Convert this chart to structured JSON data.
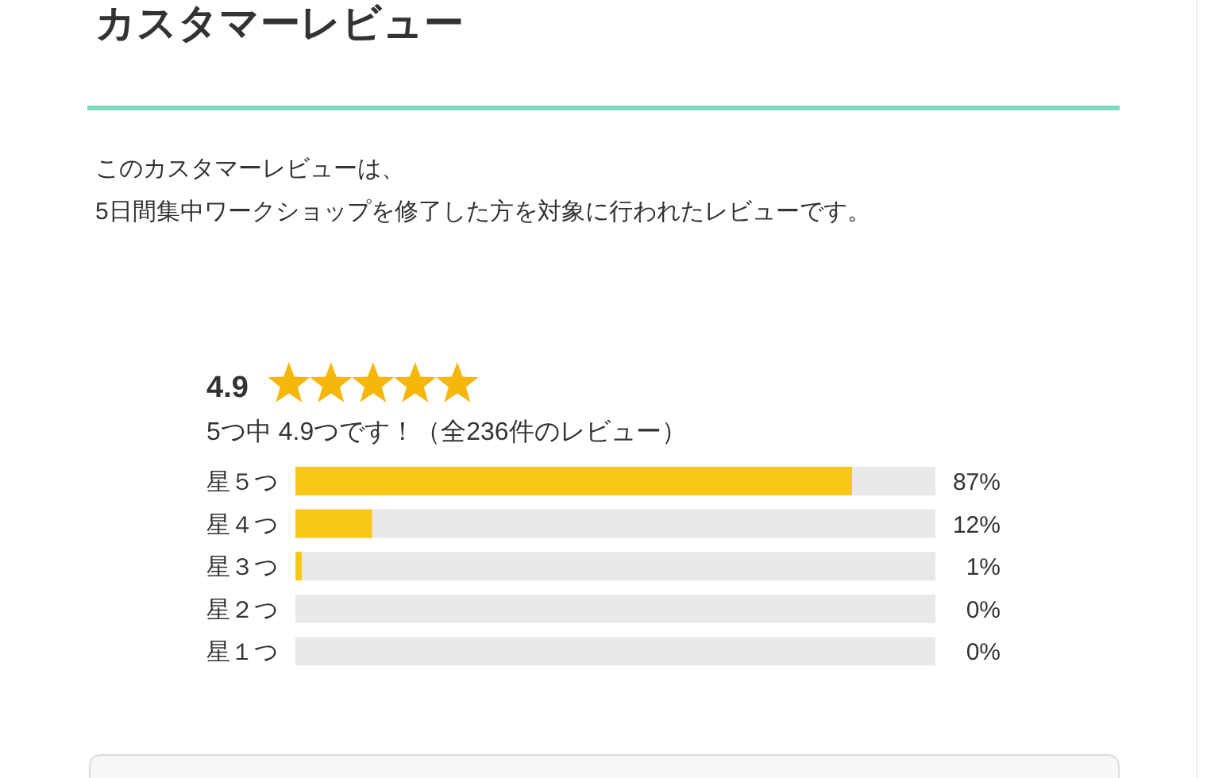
{
  "chart_data": {
    "type": "bar",
    "orientation": "horizontal",
    "stacked": true,
    "title": "カスタマーレビュー",
    "subtitle": "このカスタマーレビューは、\n5日間集中ワークショップを修了した方を対象に行われたレビューです。",
    "annotations": [
      "4.9",
      "5つ中 4.9つです！（全236件のレビュー）"
    ],
    "categories": [
      "星５つ",
      "星４つ",
      "星３つ",
      "星２つ",
      "星１つ"
    ],
    "series": [
      {
        "color": "#f8c816",
        "values": [
          87,
          12,
          1,
          0,
          0
        ],
        "value_labels": [
          "87%",
          "12%",
          "1%",
          "0%",
          "0%"
        ]
      },
      {
        "color": "#e9e9e9",
        "values": [
          13,
          88,
          99,
          100,
          100
        ]
      }
    ],
    "xlim": [
      0,
      100
    ],
    "tick_labels": "y"
  }
}
